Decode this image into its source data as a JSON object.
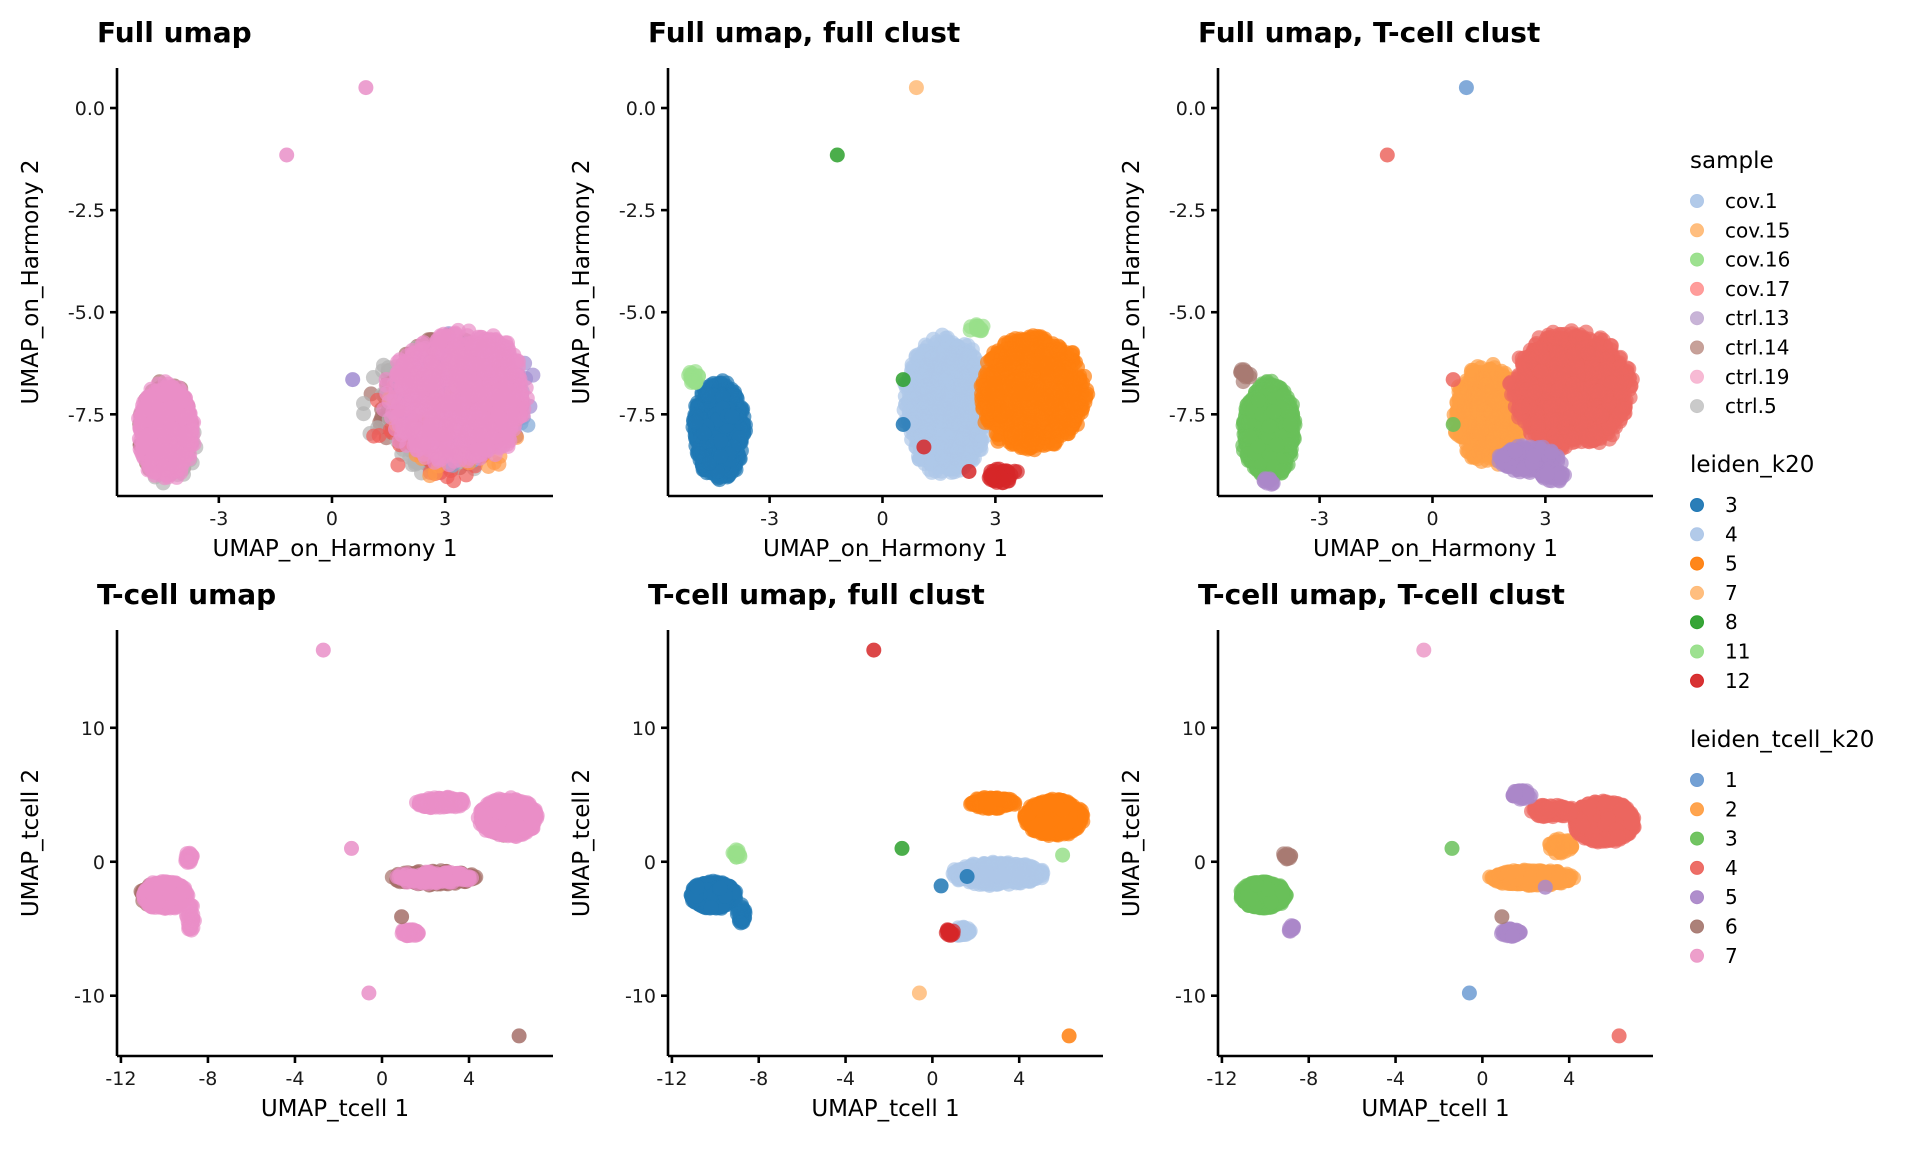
{
  "chart_data": [
    {
      "type": "scatter",
      "title": "Full umap",
      "xlabel": "UMAP_on_Harmony 1",
      "ylabel": "UMAP_on_Harmony 2",
      "xlim": [
        -5.7,
        5.86
      ],
      "ylim": [
        -9.5,
        0.98
      ],
      "xticks": [
        -3,
        0,
        3
      ],
      "xtick_labels": [
        "-3",
        "0",
        "3"
      ],
      "yticks": [
        0.0,
        -2.5,
        -5.0,
        -7.5
      ],
      "ytick_labels": [
        "0.0",
        "-2.5",
        "-5.0",
        "-7.5"
      ],
      "color_by": "sample",
      "grid": false,
      "clusters": [
        {
          "group": "ctrl.14",
          "cx": 3.1,
          "cy": -7.2,
          "rx": 2.1,
          "ry": 1.7,
          "n": 420
        },
        {
          "group": "ctrl.5",
          "cx": 2.8,
          "cy": -7.4,
          "rx": 2.2,
          "ry": 1.7,
          "n": 120
        },
        {
          "group": "ctrl.13",
          "cx": 3.6,
          "cy": -7.0,
          "rx": 1.9,
          "ry": 1.6,
          "n": 120
        },
        {
          "group": "cov.17",
          "cx": 3.0,
          "cy": -7.6,
          "rx": 2.1,
          "ry": 1.6,
          "n": 60
        },
        {
          "group": "cov.1",
          "cx": 3.4,
          "cy": -7.3,
          "rx": 2.0,
          "ry": 1.6,
          "n": 60
        },
        {
          "group": "cov.15",
          "cx": 3.2,
          "cy": -7.7,
          "rx": 2.0,
          "ry": 1.5,
          "n": 40
        },
        {
          "group": "ctrl.19",
          "cx": 3.3,
          "cy": -7.1,
          "rx": 2.0,
          "ry": 1.7,
          "n": 700
        },
        {
          "group": "ctrl.19",
          "cx": 4.2,
          "cy": -7.0,
          "rx": 0.9,
          "ry": 1.6,
          "n": 300
        },
        {
          "group": "ctrl.14",
          "cx": -4.4,
          "cy": -7.9,
          "rx": 0.75,
          "ry": 1.25,
          "n": 180
        },
        {
          "group": "cov.16",
          "cx": -4.5,
          "cy": -8.2,
          "rx": 0.35,
          "ry": 0.5,
          "n": 30
        },
        {
          "group": "ctrl.5",
          "cx": -4.3,
          "cy": -8.1,
          "rx": 0.8,
          "ry": 1.2,
          "n": 40
        },
        {
          "group": "ctrl.19",
          "cx": -4.4,
          "cy": -7.9,
          "rx": 0.8,
          "ry": 1.25,
          "n": 450
        }
      ],
      "outliers": [
        {
          "x": 0.9,
          "y": 0.5,
          "group": "ctrl.19"
        },
        {
          "x": -1.2,
          "y": -1.15,
          "group": "ctrl.19"
        },
        {
          "x": 0.55,
          "y": -6.65,
          "group": "ctrl.13"
        }
      ]
    },
    {
      "type": "scatter",
      "title": "Full umap, full clust",
      "xlabel": "UMAP_on_Harmony 1",
      "ylabel": "UMAP_on_Harmony 2",
      "xlim": [
        -5.7,
        5.86
      ],
      "ylim": [
        -9.5,
        0.98
      ],
      "xticks": [
        -3,
        0,
        3
      ],
      "xtick_labels": [
        "-3",
        "0",
        "3"
      ],
      "yticks": [
        0.0,
        -2.5,
        -5.0,
        -7.5
      ],
      "ytick_labels": [
        "0.0",
        "-2.5",
        "-5.0",
        "-7.5"
      ],
      "color_by": "leiden_k20",
      "grid": false,
      "clusters": [
        {
          "group": "4",
          "cx": 1.7,
          "cy": -7.3,
          "rx": 1.2,
          "ry": 1.8,
          "n": 700
        },
        {
          "group": "5",
          "cx": 4.0,
          "cy": -7.0,
          "rx": 1.5,
          "ry": 1.5,
          "n": 900
        },
        {
          "group": "12",
          "cx": 3.2,
          "cy": -9.0,
          "rx": 0.45,
          "ry": 0.2,
          "n": 40
        },
        {
          "group": "11",
          "cx": 2.5,
          "cy": -5.4,
          "rx": 0.2,
          "ry": 0.12,
          "n": 12
        },
        {
          "group": "3",
          "cx": -4.35,
          "cy": -7.9,
          "rx": 0.75,
          "ry": 1.25,
          "n": 700
        },
        {
          "group": "11",
          "cx": -5.0,
          "cy": -6.6,
          "rx": 0.2,
          "ry": 0.2,
          "n": 16
        }
      ],
      "outliers": [
        {
          "x": 0.9,
          "y": 0.5,
          "group": "7"
        },
        {
          "x": -1.2,
          "y": -1.15,
          "group": "8"
        },
        {
          "x": 0.55,
          "y": -6.65,
          "group": "8"
        },
        {
          "x": 0.55,
          "y": -7.75,
          "group": "3"
        },
        {
          "x": 1.1,
          "y": -8.3,
          "group": "12"
        },
        {
          "x": 2.3,
          "y": -8.9,
          "group": "12"
        }
      ]
    },
    {
      "type": "scatter",
      "title": "Full umap, T-cell clust",
      "xlabel": "UMAP_on_Harmony 1",
      "ylabel": "UMAP_on_Harmony 2",
      "xlim": [
        -5.7,
        5.86
      ],
      "ylim": [
        -9.5,
        0.98
      ],
      "xticks": [
        -3,
        0,
        3
      ],
      "xtick_labels": [
        "-3",
        "0",
        "3"
      ],
      "yticks": [
        0.0,
        -2.5,
        -5.0,
        -7.5
      ],
      "ytick_labels": [
        "0.0",
        "-2.5",
        "-5.0",
        "-7.5"
      ],
      "color_by": "leiden_tcell_k20",
      "grid": false,
      "clusters": [
        {
          "group": "2",
          "cx": 1.5,
          "cy": -7.5,
          "rx": 1.0,
          "ry": 1.3,
          "n": 500
        },
        {
          "group": "4",
          "cx": 3.7,
          "cy": -6.9,
          "rx": 1.7,
          "ry": 1.5,
          "n": 1000
        },
        {
          "group": "5",
          "cx": 2.6,
          "cy": -8.6,
          "rx": 0.9,
          "ry": 0.35,
          "n": 140
        },
        {
          "group": "5",
          "cx": 3.2,
          "cy": -9.0,
          "rx": 0.4,
          "ry": 0.15,
          "n": 30
        },
        {
          "group": "3",
          "cx": -4.35,
          "cy": -7.9,
          "rx": 0.75,
          "ry": 1.25,
          "n": 700
        },
        {
          "group": "6",
          "cx": -5.0,
          "cy": -6.55,
          "rx": 0.2,
          "ry": 0.18,
          "n": 16
        },
        {
          "group": "5",
          "cx": -4.4,
          "cy": -9.15,
          "rx": 0.2,
          "ry": 0.1,
          "n": 10
        }
      ],
      "outliers": [
        {
          "x": 0.9,
          "y": 0.5,
          "group": "1"
        },
        {
          "x": -1.2,
          "y": -1.15,
          "group": "4"
        },
        {
          "x": 0.55,
          "y": -6.65,
          "group": "4"
        },
        {
          "x": 0.55,
          "y": -7.75,
          "group": "3"
        }
      ]
    },
    {
      "type": "scatter",
      "title": "T-cell umap",
      "xlabel": "UMAP_tcell 1",
      "ylabel": "UMAP_tcell 2",
      "xlim": [
        -12.18,
        7.86
      ],
      "ylim": [
        -14.5,
        17.3
      ],
      "xticks": [
        -12,
        -8,
        -4,
        0,
        4
      ],
      "xtick_labels": [
        "-12",
        "-8",
        "-4",
        "0",
        "4"
      ],
      "yticks": [
        10,
        0,
        -10
      ],
      "ytick_labels": [
        "10",
        "0",
        "-10"
      ],
      "color_by": "sample",
      "grid": false,
      "clusters": [
        {
          "group": "ctrl.14",
          "cx": 5.8,
          "cy": 3.3,
          "rx": 1.3,
          "ry": 1.4,
          "n": 250
        },
        {
          "group": "ctrl.19",
          "cx": 5.8,
          "cy": 3.3,
          "rx": 1.4,
          "ry": 1.5,
          "n": 700
        },
        {
          "group": "ctrl.19",
          "cx": 2.7,
          "cy": 4.4,
          "rx": 1.2,
          "ry": 0.45,
          "n": 120
        },
        {
          "group": "ctrl.14",
          "cx": 2.4,
          "cy": -1.2,
          "rx": 2.0,
          "ry": 0.55,
          "n": 250
        },
        {
          "group": "ctrl.19",
          "cx": 2.4,
          "cy": -1.2,
          "rx": 2.0,
          "ry": 0.45,
          "n": 120
        },
        {
          "group": "ctrl.19",
          "cx": 1.3,
          "cy": -5.3,
          "rx": 0.45,
          "ry": 0.3,
          "n": 50
        },
        {
          "group": "ctrl.14",
          "cx": -10.1,
          "cy": -2.5,
          "rx": 1.1,
          "ry": 1.0,
          "n": 200
        },
        {
          "group": "cov.16",
          "cx": -10.3,
          "cy": -2.6,
          "rx": 0.4,
          "ry": 0.4,
          "n": 20
        },
        {
          "group": "ctrl.19",
          "cx": -10.0,
          "cy": -2.5,
          "rx": 1.1,
          "ry": 1.1,
          "n": 500
        },
        {
          "group": "ctrl.19",
          "cx": -8.8,
          "cy": -4.2,
          "rx": 0.2,
          "ry": 1.1,
          "n": 40
        },
        {
          "group": "ctrl.19",
          "cx": -8.9,
          "cy": 0.3,
          "rx": 0.2,
          "ry": 0.4,
          "n": 20
        }
      ],
      "outliers": [
        {
          "x": -2.7,
          "y": 15.8,
          "group": "ctrl.19"
        },
        {
          "x": -1.4,
          "y": 1.0,
          "group": "ctrl.19"
        },
        {
          "x": -0.6,
          "y": -9.8,
          "group": "ctrl.19"
        },
        {
          "x": 6.3,
          "y": -13.0,
          "group": "ctrl.14"
        },
        {
          "x": 0.9,
          "y": -4.1,
          "group": "ctrl.14"
        }
      ]
    },
    {
      "type": "scatter",
      "title": "T-cell umap, full clust",
      "xlabel": "UMAP_tcell 1",
      "ylabel": "UMAP_tcell 2",
      "xlim": [
        -12.18,
        7.86
      ],
      "ylim": [
        -14.5,
        17.3
      ],
      "xticks": [
        -12,
        -8,
        -4,
        0,
        4
      ],
      "xtick_labels": [
        "-12",
        "-8",
        "-4",
        "0",
        "4"
      ],
      "yticks": [
        10,
        0,
        -10
      ],
      "ytick_labels": [
        "10",
        "0",
        "-10"
      ],
      "color_by": "leiden_k20",
      "grid": false,
      "clusters": [
        {
          "group": "4",
          "cx": 3.0,
          "cy": -0.9,
          "rx": 2.2,
          "ry": 0.9,
          "n": 400
        },
        {
          "group": "4",
          "cx": 1.3,
          "cy": -5.2,
          "rx": 0.5,
          "ry": 0.35,
          "n": 40
        },
        {
          "group": "5",
          "cx": 5.6,
          "cy": 3.3,
          "rx": 1.4,
          "ry": 1.4,
          "n": 900
        },
        {
          "group": "5",
          "cx": 2.8,
          "cy": 4.4,
          "rx": 1.1,
          "ry": 0.45,
          "n": 120
        },
        {
          "group": "12",
          "cx": 0.8,
          "cy": -5.3,
          "rx": 0.2,
          "ry": 0.3,
          "n": 14
        },
        {
          "group": "11",
          "cx": -9.0,
          "cy": 0.6,
          "rx": 0.2,
          "ry": 0.3,
          "n": 12
        },
        {
          "group": "3",
          "cx": -10.1,
          "cy": -2.5,
          "rx": 1.1,
          "ry": 1.05,
          "n": 700
        },
        {
          "group": "3",
          "cx": -8.8,
          "cy": -4.1,
          "rx": 0.2,
          "ry": 1.0,
          "n": 30
        }
      ],
      "outliers": [
        {
          "x": -2.7,
          "y": 15.8,
          "group": "12"
        },
        {
          "x": -1.4,
          "y": 1.0,
          "group": "8"
        },
        {
          "x": -0.6,
          "y": -9.8,
          "group": "7"
        },
        {
          "x": 6.3,
          "y": -13.0,
          "group": "5"
        },
        {
          "x": 0.4,
          "y": -1.8,
          "group": "3"
        },
        {
          "x": 1.6,
          "y": -1.1,
          "group": "3"
        },
        {
          "x": 6.0,
          "y": 0.5,
          "group": "11"
        }
      ]
    },
    {
      "type": "scatter",
      "title": "T-cell umap, T-cell clust",
      "xlabel": "UMAP_tcell 1",
      "ylabel": "UMAP_tcell 2",
      "xlim": [
        -12.18,
        7.86
      ],
      "ylim": [
        -14.5,
        17.3
      ],
      "xticks": [
        -12,
        -8,
        -4,
        0,
        4
      ],
      "xtick_labels": [
        "-12",
        "-8",
        "-4",
        "0",
        "4"
      ],
      "yticks": [
        10,
        0,
        -10
      ],
      "ytick_labels": [
        "10",
        "0",
        "-10"
      ],
      "color_by": "leiden_tcell_k20",
      "grid": false,
      "clusters": [
        {
          "group": "2",
          "cx": 2.3,
          "cy": -1.2,
          "rx": 2.0,
          "ry": 0.6,
          "n": 400
        },
        {
          "group": "2",
          "cx": 3.6,
          "cy": 1.2,
          "rx": 0.6,
          "ry": 0.6,
          "n": 40
        },
        {
          "group": "4",
          "cx": 5.6,
          "cy": 3.0,
          "rx": 1.5,
          "ry": 1.6,
          "n": 1000
        },
        {
          "group": "4",
          "cx": 3.2,
          "cy": 3.8,
          "rx": 1.0,
          "ry": 0.5,
          "n": 120
        },
        {
          "group": "5",
          "cx": 1.8,
          "cy": 5.0,
          "rx": 0.5,
          "ry": 0.35,
          "n": 40
        },
        {
          "group": "5",
          "cx": 1.3,
          "cy": -5.3,
          "rx": 0.5,
          "ry": 0.3,
          "n": 60
        },
        {
          "group": "3",
          "cx": -10.1,
          "cy": -2.5,
          "rx": 1.1,
          "ry": 1.05,
          "n": 700
        },
        {
          "group": "6",
          "cx": -9.0,
          "cy": 0.5,
          "rx": 0.2,
          "ry": 0.35,
          "n": 16
        },
        {
          "group": "5",
          "cx": -8.8,
          "cy": -5.0,
          "rx": 0.15,
          "ry": 0.3,
          "n": 12
        }
      ],
      "outliers": [
        {
          "x": -2.7,
          "y": 15.8,
          "group": "7"
        },
        {
          "x": -1.4,
          "y": 1.0,
          "group": "3"
        },
        {
          "x": -0.6,
          "y": -9.8,
          "group": "1"
        },
        {
          "x": 6.3,
          "y": -13.0,
          "group": "4"
        },
        {
          "x": 0.9,
          "y": -4.1,
          "group": "6"
        },
        {
          "x": 2.9,
          "y": -1.9,
          "group": "5"
        }
      ]
    }
  ],
  "legends": [
    {
      "title": "sample",
      "items": [
        {
          "label": "cov.1",
          "color": "#aec7e8"
        },
        {
          "label": "cov.15",
          "color": "#ffbb78"
        },
        {
          "label": "cov.16",
          "color": "#98df8a"
        },
        {
          "label": "cov.17",
          "color": "#ff9896"
        },
        {
          "label": "ctrl.13",
          "color": "#c5b0d5"
        },
        {
          "label": "ctrl.14",
          "color": "#c49c94"
        },
        {
          "label": "ctrl.19",
          "color": "#f7b6d2"
        },
        {
          "label": "ctrl.5",
          "color": "#c7c7c7"
        }
      ]
    },
    {
      "title": "leiden_k20",
      "items": [
        {
          "label": "3",
          "color": "#1f77b4"
        },
        {
          "label": "4",
          "color": "#aec7e8"
        },
        {
          "label": "5",
          "color": "#ff7f0e"
        },
        {
          "label": "7",
          "color": "#ffbb78"
        },
        {
          "label": "8",
          "color": "#2ca02c"
        },
        {
          "label": "11",
          "color": "#98df8a"
        },
        {
          "label": "12",
          "color": "#d62728"
        }
      ]
    },
    {
      "title": "leiden_tcell_k20",
      "items": [
        {
          "label": "1",
          "color": "#6c9bd2"
        },
        {
          "label": "2",
          "color": "#ff9f45"
        },
        {
          "label": "3",
          "color": "#6ac15a"
        },
        {
          "label": "4",
          "color": "#ec665f"
        },
        {
          "label": "5",
          "color": "#ab88c9"
        },
        {
          "label": "6",
          "color": "#a87a72"
        },
        {
          "label": "7",
          "color": "#ec9ac8"
        }
      ]
    }
  ],
  "point_colors": {
    "sample": {
      "cov.1": "#7fa6d6",
      "cov.15": "#ff9a4a",
      "cov.16": "#5cbf4c",
      "cov.17": "#ee5a55",
      "ctrl.13": "#a08bd0",
      "ctrl.14": "#a56f68",
      "ctrl.19": "#e98fc8",
      "ctrl.5": "#b3b3b3"
    },
    "leiden_k20": {
      "3": "#1f77b4",
      "4": "#aec7e8",
      "5": "#ff7f0e",
      "7": "#ffbb78",
      "8": "#2ca02c",
      "11": "#98df8a",
      "12": "#d62728"
    },
    "leiden_tcell_k20": {
      "1": "#6c9bd2",
      "2": "#ff9f45",
      "3": "#6ac15a",
      "4": "#ec665f",
      "5": "#ab88c9",
      "6": "#a87a72",
      "7": "#ec9ac8"
    }
  }
}
